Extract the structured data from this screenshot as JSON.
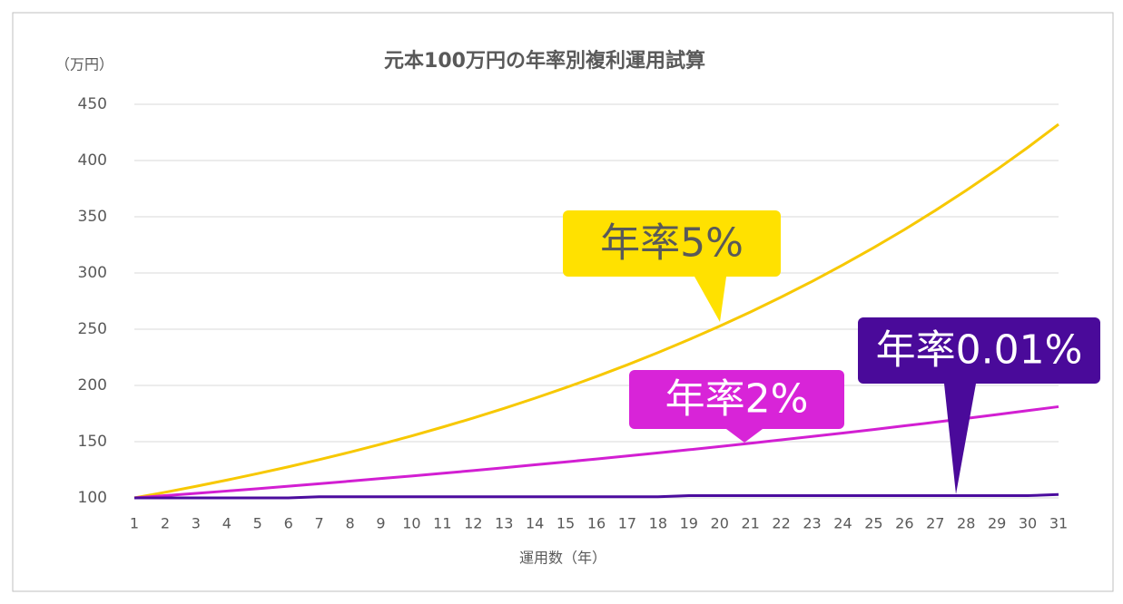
{
  "chart_data": {
    "type": "line",
    "title": "元本100万円の年率別複利運用試算",
    "y_label": "（万円）",
    "x_label": "運用数（年）",
    "categories": [
      "1",
      "2",
      "3",
      "4",
      "5",
      "6",
      "7",
      "8",
      "9",
      "10",
      "11",
      "12",
      "13",
      "14",
      "15",
      "16",
      "17",
      "18",
      "19",
      "20",
      "21",
      "22",
      "23",
      "24",
      "25",
      "26",
      "27",
      "28",
      "29",
      "30",
      "31"
    ],
    "series": [
      {
        "name": "年率5%",
        "color": "#f7c800",
        "values": [
          100,
          105,
          110.3,
          115.8,
          121.6,
          127.6,
          134,
          140.7,
          147.7,
          155.1,
          162.9,
          171,
          179.6,
          188.6,
          198,
          207.9,
          218.3,
          229.2,
          240.7,
          252.7,
          265.3,
          278.6,
          292.5,
          307.2,
          322.5,
          338.6,
          355.6,
          373.4,
          392,
          411.6,
          432.2
        ]
      },
      {
        "name": "年率2%",
        "color": "#d21fd2",
        "values": [
          100,
          102,
          104,
          106.1,
          108.2,
          110.4,
          112.6,
          114.9,
          117.2,
          119.5,
          121.9,
          124.3,
          126.8,
          129.4,
          132,
          134.6,
          137.3,
          140,
          142.8,
          145.7,
          148.6,
          151.6,
          154.6,
          157.7,
          160.8,
          164.1,
          167.3,
          170.7,
          174.1,
          177.6,
          181.1
        ]
      },
      {
        "name": "年率0.01%",
        "color": "#4b0c9e",
        "values": [
          100,
          100,
          100,
          100,
          100,
          100,
          101,
          101,
          101,
          101,
          101,
          101,
          101,
          101,
          101,
          101,
          101,
          101,
          102,
          102,
          102,
          102,
          102,
          102,
          102,
          102,
          102,
          102,
          102,
          102,
          103
        ]
      }
    ],
    "annotation_colors": [
      {
        "box": "#ffe100",
        "text": "#595959"
      },
      {
        "box": "#d824d8",
        "text": "#ffffff"
      },
      {
        "box": "#4a0a9a",
        "text": "#ffffff"
      }
    ],
    "ylim": [
      100,
      450
    ],
    "yticks": [
      100,
      150,
      200,
      250,
      300,
      350,
      400,
      450
    ],
    "grid": true
  }
}
